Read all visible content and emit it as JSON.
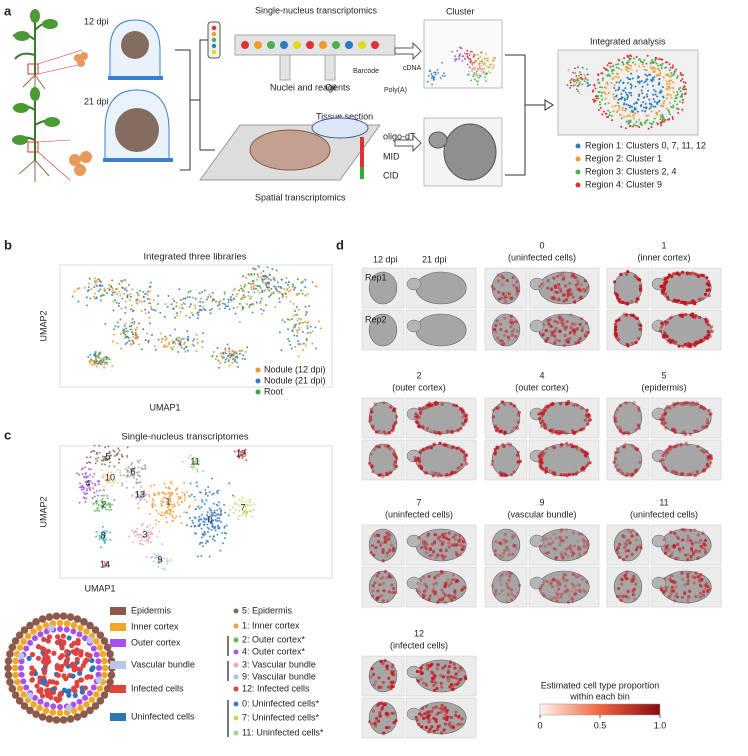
{
  "panel_a": {
    "label": "a",
    "stage_12": "12 dpi",
    "stage_21": "21 dpi",
    "sn_title": "Single-nucleus transcriptomics",
    "nuclei": "Nuclei and reagents",
    "oil": "Oil",
    "barcode": "Barcode",
    "polya": "Poly(A)",
    "cdna": "cDNA",
    "cluster": "Cluster",
    "tissue": "Tissue section",
    "oligo": "oligo-dT",
    "mid": "MID",
    "cid": "CID",
    "spatial": "Spatial transcriptomics",
    "integrated": "Integrated analysis",
    "regions": [
      {
        "label": "Region 1: Clusters 0, 7, 11, 12",
        "color": "#2e7bbd"
      },
      {
        "label": "Region 2: Cluster 1",
        "color": "#f39b2f"
      },
      {
        "label": "Region 3: Clusters 2, 4",
        "color": "#4caf50"
      },
      {
        "label": "Region 4: Cluster 9",
        "color": "#d9352f"
      }
    ]
  },
  "panel_b": {
    "label": "b",
    "title": "Integrated three libraries",
    "x_label": "UMAP1",
    "y_label": "UMAP2",
    "legend": [
      {
        "label": "Nodule (12 dpi)",
        "color": "#f0932b"
      },
      {
        "label": "Nodule (21 dpi)",
        "color": "#3778c2"
      },
      {
        "label": "Root",
        "color": "#3aa63a"
      }
    ]
  },
  "panel_c": {
    "label": "c",
    "title": "Single-nucleus transcriptomes",
    "x_label": "UMAP1",
    "y_label": "UMAP2",
    "clusters": [
      {
        "label": "0",
        "color": "#3a7fc1"
      },
      {
        "label": "1",
        "color": "#f2a03d"
      },
      {
        "label": "2",
        "color": "#5db85c"
      },
      {
        "label": "3",
        "color": "#f4a7b9"
      },
      {
        "label": "4",
        "color": "#a45de0"
      },
      {
        "label": "5",
        "color": "#8c6a5a"
      },
      {
        "label": "6",
        "color": "#a0a0a0"
      },
      {
        "label": "7",
        "color": "#c4d86a"
      },
      {
        "label": "8",
        "color": "#3fb6c4"
      },
      {
        "label": "9",
        "color": "#a9c4e8"
      },
      {
        "label": "10",
        "color": "#f9c98d"
      },
      {
        "label": "11",
        "color": "#9fd88b"
      },
      {
        "label": "12",
        "color": "#e0423e"
      },
      {
        "label": "13",
        "color": "#c7a4e0"
      },
      {
        "label": "14",
        "color": "#e88aa0"
      }
    ],
    "cell_types": [
      {
        "label": "Epidermis",
        "color": "#8c5a4a"
      },
      {
        "label": "Inner cortex",
        "color": "#f5a623"
      },
      {
        "label": "Outer cortex",
        "color": "#a950f0"
      },
      {
        "label": "Vascular bundle",
        "color": "#b7c8ea"
      },
      {
        "label": "Infected cells",
        "color": "#e0423e"
      },
      {
        "label": "Uninfected cells",
        "color": "#2f73b8"
      }
    ],
    "cluster_key": [
      {
        "label": "5: Epidermis",
        "color": "#8c6a5a"
      },
      {
        "label": "1: Inner cortex",
        "color": "#f2a03d"
      },
      {
        "label": "2: Outer cortex*",
        "color": "#5db85c"
      },
      {
        "label": "4: Outer cortex*",
        "color": "#a45de0"
      },
      {
        "label": "3: Vascular bundle",
        "color": "#f4a7b9"
      },
      {
        "label": "9: Vascular bundle",
        "color": "#a9c4e8"
      },
      {
        "label": "12: Infected cells",
        "color": "#e0423e"
      },
      {
        "label": "0: Uninfected cells*",
        "color": "#3a7fc1"
      },
      {
        "label": "7: Uninfected cells*",
        "color": "#c4d86a"
      },
      {
        "label": "11: Uninfected cells*",
        "color": "#9fd88b"
      }
    ]
  },
  "panel_d": {
    "label": "d",
    "reference": {
      "col1": "12 dpi",
      "col2": "21 dpi",
      "row1": "Rep1",
      "row2": "Rep2"
    },
    "panels": [
      {
        "title": "0",
        "subtitle": "(uninfected cells)"
      },
      {
        "title": "1",
        "subtitle": "(inner cortex)"
      },
      {
        "title": "2",
        "subtitle": "(outer cortex)"
      },
      {
        "title": "4",
        "subtitle": "(outer cortex)"
      },
      {
        "title": "5",
        "subtitle": "(epidermis)"
      },
      {
        "title": "7",
        "subtitle": "(uninfected cells)"
      },
      {
        "title": "9",
        "subtitle": "(vascular bundle)"
      },
      {
        "title": "11",
        "subtitle": "(uninfected cells)"
      },
      {
        "title": "12",
        "subtitle": "(infected cells)"
      }
    ],
    "colorbar": {
      "title_lines": [
        "Estimated cell type proportion",
        "within each bin"
      ],
      "lim": [
        0,
        1
      ],
      "ticks": [
        0,
        0.5,
        {
          "value": 1,
          "label": "1.0"
        }
      ]
    }
  }
}
